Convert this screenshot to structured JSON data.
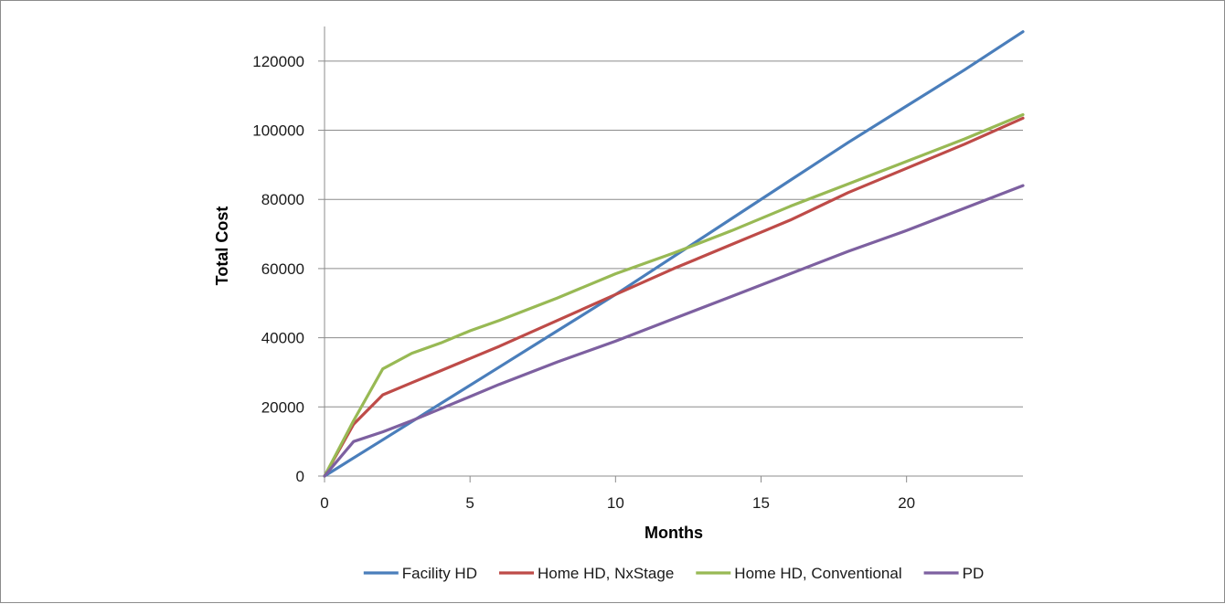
{
  "chart_data": {
    "type": "line",
    "title": "",
    "xlabel": "Months",
    "ylabel": "Total Cost",
    "xlim": [
      0,
      24
    ],
    "ylim": [
      0,
      130000
    ],
    "x_ticks": [
      0,
      5,
      10,
      15,
      20
    ],
    "x_tick_labels": [
      "0",
      "5",
      "10",
      "15",
      "20"
    ],
    "y_ticks": [
      0,
      20000,
      40000,
      60000,
      80000,
      100000,
      120000
    ],
    "y_tick_labels": [
      "0",
      "20000",
      "40000",
      "60000",
      "80000",
      "100000",
      "120000"
    ],
    "grid": "horizontal",
    "legend_position": "bottom",
    "series": [
      {
        "name": "Facility HD",
        "color": "#4a7ebb",
        "points": [
          [
            0,
            0
          ],
          [
            2,
            10500
          ],
          [
            4,
            21000
          ],
          [
            6,
            31500
          ],
          [
            8,
            42000
          ],
          [
            10,
            52500
          ],
          [
            12,
            63500
          ],
          [
            14,
            74500
          ],
          [
            16,
            85500
          ],
          [
            18,
            96500
          ],
          [
            20,
            107000
          ],
          [
            22,
            117500
          ],
          [
            24,
            128500
          ]
        ]
      },
      {
        "name": "Home HD, NxStage",
        "color": "#be4b48",
        "points": [
          [
            0,
            0
          ],
          [
            1,
            15000
          ],
          [
            2,
            23500
          ],
          [
            3,
            27000
          ],
          [
            4,
            30500
          ],
          [
            5,
            34000
          ],
          [
            6,
            37500
          ],
          [
            8,
            45000
          ],
          [
            10,
            52500
          ],
          [
            12,
            60000
          ],
          [
            14,
            67000
          ],
          [
            15,
            70500
          ],
          [
            16,
            74000
          ],
          [
            18,
            82000
          ],
          [
            20,
            89000
          ],
          [
            22,
            96000
          ],
          [
            24,
            103500
          ]
        ]
      },
      {
        "name": "Home HD, Conventional",
        "color": "#98b954",
        "points": [
          [
            0,
            0
          ],
          [
            1,
            16000
          ],
          [
            2,
            31000
          ],
          [
            3,
            35500
          ],
          [
            4,
            38500
          ],
          [
            5,
            42000
          ],
          [
            6,
            45000
          ],
          [
            8,
            51500
          ],
          [
            10,
            58500
          ],
          [
            12,
            64500
          ],
          [
            14,
            71000
          ],
          [
            16,
            78000
          ],
          [
            18,
            84500
          ],
          [
            20,
            91000
          ],
          [
            22,
            97500
          ],
          [
            24,
            104500
          ]
        ]
      },
      {
        "name": "PD",
        "color": "#7d60a0",
        "points": [
          [
            0,
            0
          ],
          [
            1,
            10000
          ],
          [
            2,
            12800
          ],
          [
            3,
            16000
          ],
          [
            4,
            19500
          ],
          [
            5,
            23000
          ],
          [
            6,
            26500
          ],
          [
            8,
            33000
          ],
          [
            10,
            39000
          ],
          [
            12,
            45500
          ],
          [
            14,
            52000
          ],
          [
            16,
            58500
          ],
          [
            18,
            65000
          ],
          [
            20,
            71000
          ],
          [
            22,
            77500
          ],
          [
            24,
            84000
          ]
        ]
      }
    ]
  }
}
